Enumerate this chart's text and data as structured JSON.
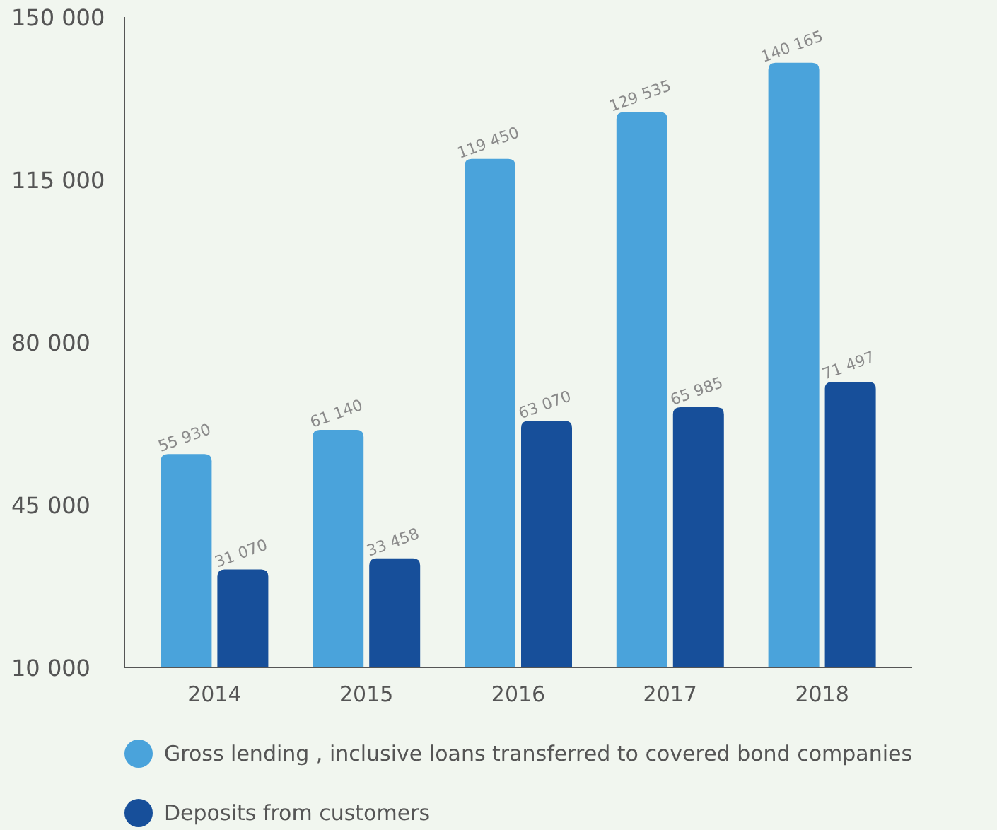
{
  "chart_data": {
    "type": "bar",
    "categories": [
      "2014",
      "2015",
      "2016",
      "2017",
      "2018"
    ],
    "series": [
      {
        "name": "Gross lending , inclusive loans transferred to covered bond companies",
        "color": "#4aa3db",
        "values": [
          55930,
          61140,
          119450,
          129535,
          140165
        ],
        "value_labels": [
          "55 930",
          "61 140",
          "119 450",
          "129 535",
          "140 165"
        ]
      },
      {
        "name": "Deposits from customers",
        "color": "#174f9a",
        "values": [
          31070,
          33458,
          63070,
          65985,
          71497
        ],
        "value_labels": [
          "31 070",
          "33 458",
          "63 070",
          "65 985",
          "71 497"
        ]
      }
    ],
    "ylim": [
      10000,
      150000
    ],
    "yticks": [
      {
        "value": 10000,
        "label": "10 000"
      },
      {
        "value": 45000,
        "label": "45 000"
      },
      {
        "value": 80000,
        "label": "80 000"
      },
      {
        "value": 115000,
        "label": "115 000"
      },
      {
        "value": 150000,
        "label": "150 000"
      }
    ],
    "grid": false,
    "legend": "bottom"
  }
}
